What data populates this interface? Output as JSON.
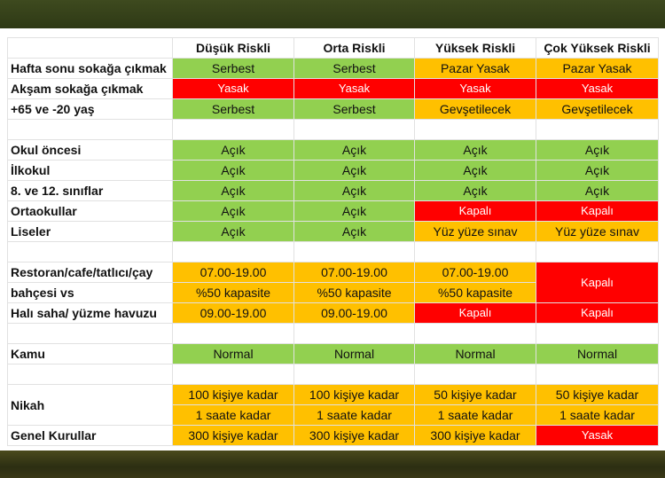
{
  "header": {
    "row_label": "",
    "columns": [
      "Düşük Riskli",
      "Orta Riskli",
      "Yüksek Riskli",
      "Çok Yüksek Riskli"
    ]
  },
  "rows": {
    "hafta_sonu": {
      "label": "Hafta sonu sokağa çıkmak",
      "values": [
        "Serbest",
        "Serbest",
        "Pazar Yasak",
        "Pazar Yasak"
      ]
    },
    "aksam": {
      "label": "Akşam sokağa çıkmak",
      "values": [
        "Yasak",
        "Yasak",
        "Yasak",
        "Yasak"
      ]
    },
    "yas": {
      "label": "+65 ve -20 yaş",
      "values": [
        "Serbest",
        "Serbest",
        "Gevşetilecek",
        "Gevşetilecek"
      ]
    },
    "okul_oncesi": {
      "label": "Okul öncesi",
      "values": [
        "Açık",
        "Açık",
        "Açık",
        "Açık"
      ]
    },
    "ilkokul": {
      "label": "İlkokul",
      "values": [
        "Açık",
        "Açık",
        "Açık",
        "Açık"
      ]
    },
    "siniflar": {
      "label": "8. ve 12. sınıflar",
      "values": [
        "Açık",
        "Açık",
        "Açık",
        "Açık"
      ]
    },
    "ortaokullar": {
      "label": "Ortaokullar",
      "values": [
        "Açık",
        "Açık",
        "Kapalı",
        "Kapalı"
      ]
    },
    "liseler": {
      "label": "Liseler",
      "values": [
        "Açık",
        "Açık",
        "Yüz yüze sınav",
        "Yüz yüze sınav"
      ]
    },
    "restoran": {
      "label_line1": "Restoran/cafe/tatlıcı/çay",
      "label_line2": "bahçesi vs",
      "values_line1": [
        "07.00-19.00",
        "07.00-19.00",
        "07.00-19.00"
      ],
      "values_line2": [
        "%50 kapasite",
        "%50 kapasite",
        "%50 kapasite"
      ],
      "value_last": "Kapalı"
    },
    "hali_saha": {
      "label": "Halı saha/ yüzme havuzu",
      "values": [
        "09.00-19.00",
        "09.00-19.00",
        "Kapalı",
        "Kapalı"
      ]
    },
    "kamu": {
      "label": "Kamu",
      "values": [
        "Normal",
        "Normal",
        "Normal",
        "Normal"
      ]
    },
    "nikah": {
      "label": "Nikah",
      "values_line1": [
        "100 kişiye kadar",
        "100 kişiye kadar",
        "50 kişiye kadar",
        "50 kişiye kadar"
      ],
      "values_line2": [
        "1 saate kadar",
        "1 saate kadar",
        "1 saate kadar",
        "1 saate kadar"
      ]
    },
    "genel_kurullar": {
      "label": "Genel Kurullar",
      "values": [
        "300 kişiye kadar",
        "300 kişiye kadar",
        "300 kişiye kadar",
        "Yasak"
      ]
    }
  },
  "colors": {
    "green": "#92d050",
    "orange": "#ffc000",
    "red": "#ff0000",
    "top_band": "#3e4a1f",
    "bottom_band": "#3a3816"
  }
}
